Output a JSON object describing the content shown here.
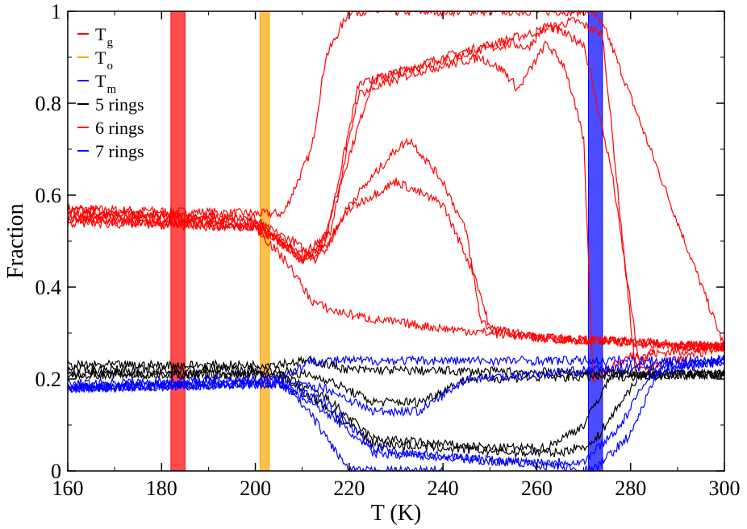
{
  "chart_data": {
    "type": "line",
    "title": "",
    "xlabel": "T  (K)",
    "ylabel": "Fraction",
    "xlim": [
      160,
      300
    ],
    "ylim": [
      0,
      1
    ],
    "xticks": [
      "160",
      "180",
      "200",
      "220",
      "240",
      "260",
      "280",
      "300"
    ],
    "yticks": [
      "0",
      "0.2",
      "0.4",
      "0.6",
      "0.8",
      "1"
    ],
    "legend_position": "top-left",
    "colors": {
      "red": "#ff0000",
      "orange": "#ffa500",
      "blue": "#0000ff",
      "black": "#000000"
    },
    "bands": [
      {
        "name": "T_g",
        "from": 182,
        "to": 185,
        "color": "#ff0000"
      },
      {
        "name": "T_o",
        "from": 201,
        "to": 203,
        "color": "#ffa500"
      },
      {
        "name": "T_m",
        "from": 271,
        "to": 274,
        "color": "#0000ff"
      }
    ],
    "legend": [
      {
        "base": "T",
        "sub": "g",
        "color": "#ff0000"
      },
      {
        "base": "T",
        "sub": "o",
        "color": "#ffa500"
      },
      {
        "base": "T",
        "sub": "m",
        "color": "#0000ff"
      },
      {
        "base": "5 rings",
        "sub": "",
        "color": "#000000"
      },
      {
        "base": "6 rings",
        "sub": "",
        "color": "#ff0000"
      },
      {
        "base": "7 rings",
        "sub": "",
        "color": "#0000ff"
      }
    ],
    "series": [
      {
        "name": "6 rings run 1",
        "color": "#ff0000",
        "x": [
          160,
          200,
          206,
          212,
          215,
          220,
          250,
          272,
          275,
          300
        ],
        "y": [
          0.57,
          0.56,
          0.56,
          0.7,
          0.9,
          1.0,
          1.0,
          1.0,
          0.95,
          0.27
        ]
      },
      {
        "name": "6 rings run 2",
        "color": "#ff0000",
        "x": [
          160,
          200,
          208,
          213,
          218,
          225,
          240,
          258,
          268,
          274,
          281,
          285,
          300
        ],
        "y": [
          0.57,
          0.54,
          0.5,
          0.46,
          0.62,
          0.85,
          0.9,
          0.95,
          0.98,
          0.95,
          0.22,
          0.27,
          0.27
        ]
      },
      {
        "name": "6 rings run 3",
        "color": "#ff0000",
        "x": [
          160,
          200,
          210,
          215,
          222,
          235,
          250,
          255,
          258,
          262,
          270,
          276,
          282,
          300
        ],
        "y": [
          0.56,
          0.55,
          0.46,
          0.5,
          0.84,
          0.88,
          0.92,
          0.93,
          0.92,
          0.97,
          0.93,
          0.65,
          0.22,
          0.27
        ]
      },
      {
        "name": "6 rings run 4",
        "color": "#ff0000",
        "x": [
          160,
          200,
          210,
          216,
          222,
          235,
          248,
          253,
          256,
          262,
          266,
          270,
          272,
          280,
          300
        ],
        "y": [
          0.55,
          0.53,
          0.47,
          0.52,
          0.82,
          0.87,
          0.9,
          0.87,
          0.83,
          0.93,
          0.88,
          0.72,
          0.2,
          0.25,
          0.27
        ]
      },
      {
        "name": "6 rings run 5",
        "color": "#ff0000",
        "x": [
          160,
          200,
          210,
          215,
          220,
          230,
          233,
          240,
          245,
          248,
          250,
          260,
          300
        ],
        "y": [
          0.56,
          0.54,
          0.46,
          0.48,
          0.58,
          0.7,
          0.72,
          0.63,
          0.52,
          0.33,
          0.31,
          0.29,
          0.27
        ]
      },
      {
        "name": "6 rings run 6",
        "color": "#ff0000",
        "x": [
          160,
          200,
          210,
          215,
          220,
          230,
          240,
          247,
          250,
          260,
          300
        ],
        "y": [
          0.55,
          0.53,
          0.46,
          0.49,
          0.57,
          0.63,
          0.58,
          0.42,
          0.31,
          0.29,
          0.27
        ]
      },
      {
        "name": "6 rings run 7",
        "color": "#ff0000",
        "x": [
          160,
          200,
          207,
          212,
          216,
          225,
          240,
          260,
          300
        ],
        "y": [
          0.54,
          0.53,
          0.45,
          0.37,
          0.35,
          0.33,
          0.31,
          0.29,
          0.27
        ]
      },
      {
        "name": "5 rings run 1",
        "color": "#000000",
        "x": [
          160,
          200,
          212,
          216,
          220,
          300
        ],
        "y": [
          0.23,
          0.23,
          0.24,
          0.23,
          0.22,
          0.21
        ]
      },
      {
        "name": "5 rings run 2",
        "color": "#000000",
        "x": [
          160,
          205,
          215,
          225,
          235,
          245,
          300
        ],
        "y": [
          0.22,
          0.22,
          0.2,
          0.15,
          0.15,
          0.2,
          0.21
        ]
      },
      {
        "name": "5 rings run 3",
        "color": "#000000",
        "x": [
          160,
          205,
          215,
          225,
          250,
          262,
          270,
          276,
          300
        ],
        "y": [
          0.21,
          0.21,
          0.16,
          0.07,
          0.05,
          0.05,
          0.1,
          0.21,
          0.21
        ]
      },
      {
        "name": "5 rings run 4",
        "color": "#000000",
        "x": [
          160,
          205,
          215,
          225,
          255,
          265,
          272,
          282,
          300
        ],
        "y": [
          0.21,
          0.21,
          0.14,
          0.06,
          0.04,
          0.04,
          0.06,
          0.21,
          0.21
        ]
      },
      {
        "name": "7 rings run 1",
        "color": "#0000ff",
        "x": [
          160,
          205,
          212,
          300
        ],
        "y": [
          0.19,
          0.2,
          0.24,
          0.24
        ]
      },
      {
        "name": "7 rings run 2",
        "color": "#0000ff",
        "x": [
          160,
          205,
          215,
          225,
          235,
          245,
          300
        ],
        "y": [
          0.18,
          0.19,
          0.18,
          0.13,
          0.13,
          0.2,
          0.24
        ]
      },
      {
        "name": "7 rings run 3",
        "color": "#0000ff",
        "x": [
          160,
          205,
          212,
          218,
          220,
          240
        ],
        "y": [
          0.18,
          0.2,
          0.12,
          0.03,
          0.0,
          0.0
        ]
      },
      {
        "name": "7 rings run 4",
        "color": "#0000ff",
        "x": [
          160,
          205,
          215,
          225,
          250,
          270,
          278,
          284,
          300
        ],
        "y": [
          0.18,
          0.19,
          0.15,
          0.05,
          0.02,
          0.02,
          0.1,
          0.21,
          0.24
        ]
      },
      {
        "name": "7 rings run 5",
        "color": "#0000ff",
        "x": [
          160,
          205,
          215,
          225,
          255,
          272,
          280,
          286,
          300
        ],
        "y": [
          0.18,
          0.19,
          0.13,
          0.04,
          0.02,
          0.0,
          0.08,
          0.22,
          0.24
        ]
      }
    ]
  }
}
